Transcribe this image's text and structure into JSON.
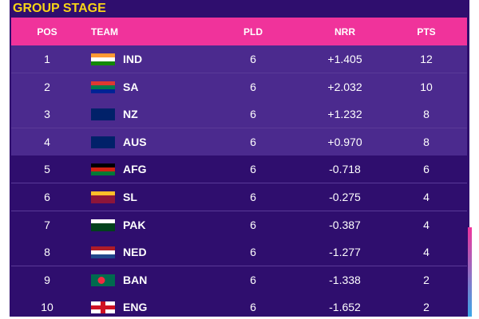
{
  "header": {
    "title": "GROUP STAGE"
  },
  "table": {
    "columns": [
      "POS",
      "TEAM",
      "PLD",
      "NRR",
      "PTS"
    ],
    "rows": [
      [
        "1",
        "IND",
        "6",
        "+1.405",
        "12"
      ],
      [
        "2",
        "SA",
        "6",
        "+2.032",
        "10"
      ],
      [
        "3",
        "NZ",
        "6",
        "+1.232",
        "8"
      ],
      [
        "4",
        "AUS",
        "6",
        "+0.970",
        "8"
      ],
      [
        "5",
        "AFG",
        "6",
        "-0.718",
        "6"
      ],
      [
        "6",
        "SL",
        "6",
        "-0.275",
        "4"
      ],
      [
        "7",
        "PAK",
        "6",
        "-0.387",
        "4"
      ],
      [
        "8",
        "NED",
        "6",
        "-1.277",
        "4"
      ],
      [
        "9",
        "BAN",
        "6",
        "-1.338",
        "2"
      ],
      [
        "10",
        "ENG",
        "6",
        "-1.652",
        "2"
      ]
    ]
  }
}
